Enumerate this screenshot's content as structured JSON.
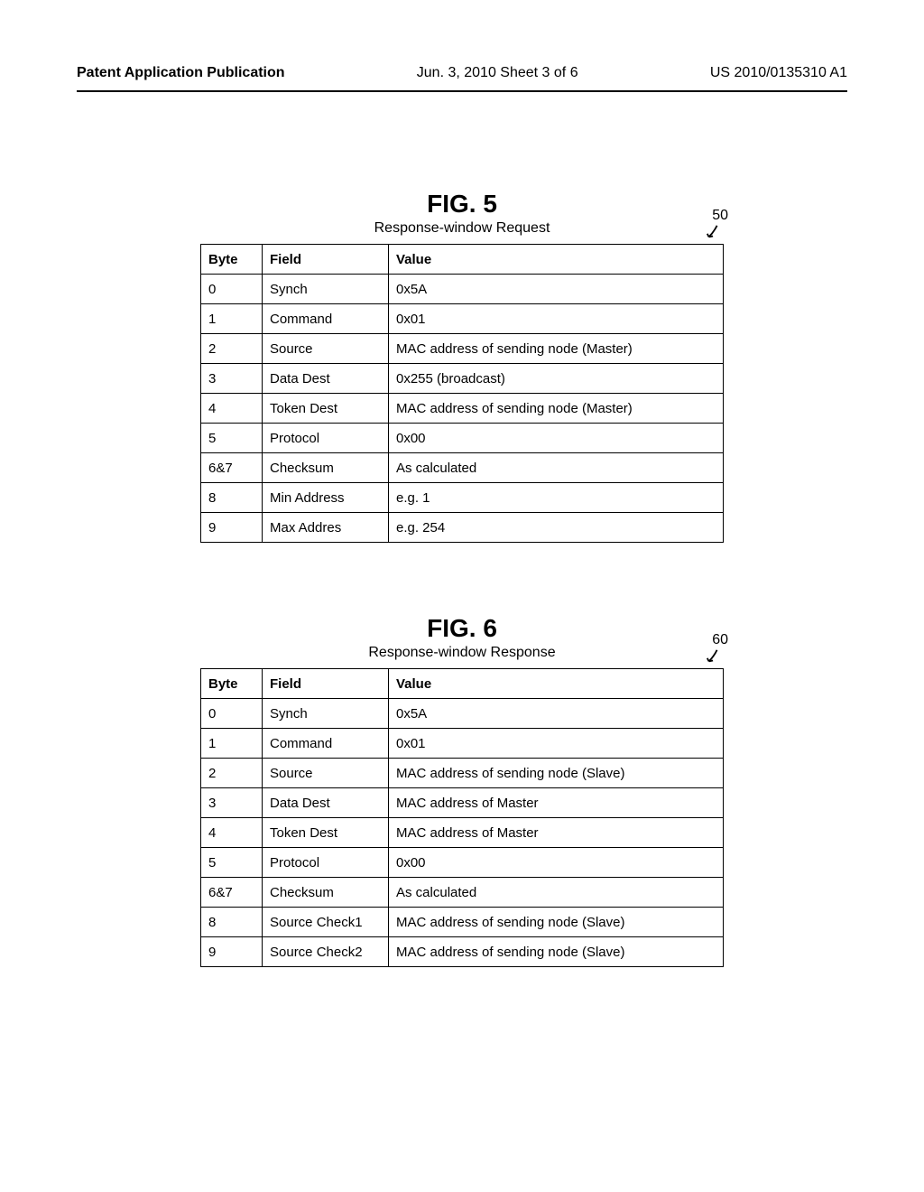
{
  "header": {
    "left": "Patent Application Publication",
    "mid": "Jun. 3, 2010   Sheet 3 of 6",
    "right": "US 2010/0135310 A1"
  },
  "figures": [
    {
      "title": "FIG. 5",
      "subtitle": "Response-window Request",
      "ref": "50",
      "columns": [
        "Byte",
        "Field",
        "Value"
      ],
      "rows": [
        [
          "0",
          "Synch",
          "0x5A"
        ],
        [
          "1",
          "Command",
          "0x01"
        ],
        [
          "2",
          "Source",
          "MAC address of sending node (Master)"
        ],
        [
          "3",
          "Data Dest",
          "0x255 (broadcast)"
        ],
        [
          "4",
          "Token Dest",
          "MAC address of sending node (Master)"
        ],
        [
          "5",
          "Protocol",
          "0x00"
        ],
        [
          "6&7",
          "Checksum",
          "As calculated"
        ],
        [
          "8",
          "Min Address",
          "e.g. 1"
        ],
        [
          "9",
          "Max Addres",
          "e.g. 254"
        ]
      ]
    },
    {
      "title": "FIG. 6",
      "subtitle": "Response-window Response",
      "ref": "60",
      "columns": [
        "Byte",
        "Field",
        "Value"
      ],
      "rows": [
        [
          "0",
          "Synch",
          "0x5A"
        ],
        [
          "1",
          "Command",
          "0x01"
        ],
        [
          "2",
          "Source",
          "MAC address of sending node (Slave)"
        ],
        [
          "3",
          "Data Dest",
          "MAC address of Master"
        ],
        [
          "4",
          "Token Dest",
          "MAC address of Master"
        ],
        [
          "5",
          "Protocol",
          "0x00"
        ],
        [
          "6&7",
          "Checksum",
          "As calculated"
        ],
        [
          "8",
          "Source Check1",
          "MAC address of sending node (Slave)"
        ],
        [
          "9",
          "Source Check2",
          "MAC address of sending node (Slave)"
        ]
      ]
    }
  ],
  "style": {
    "page_bg": "#ffffff",
    "text_color": "#000000",
    "border_color": "#000000",
    "title_fontsize": 28,
    "subtitle_fontsize": 16,
    "cell_fontsize": 15,
    "header_fontsize": 16
  }
}
